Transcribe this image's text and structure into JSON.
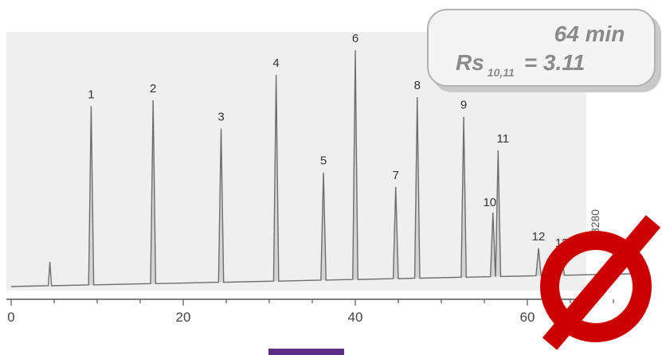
{
  "chart_data": {
    "type": "line",
    "title": "",
    "xlabel": "",
    "ylabel": "",
    "xlim": [
      0,
      72
    ],
    "x_ticks": [
      "0",
      "20",
      "40",
      "60"
    ],
    "x_tick_values": [
      0,
      20,
      40,
      60
    ],
    "grid": false,
    "series": [
      {
        "peaks": [
          {
            "label": "1",
            "rt": 9.3,
            "height": 0.78
          },
          {
            "label": "2",
            "rt": 16.5,
            "height": 0.8
          },
          {
            "label": "3",
            "rt": 24.4,
            "height": 0.67
          },
          {
            "label": "4",
            "rt": 30.8,
            "height": 0.9
          },
          {
            "label": "5",
            "rt": 36.3,
            "height": 0.47
          },
          {
            "label": "6",
            "rt": 40.0,
            "height": 1.0
          },
          {
            "label": "7",
            "rt": 44.7,
            "height": 0.4
          },
          {
            "label": "8",
            "rt": 47.2,
            "height": 0.79
          },
          {
            "label": "9",
            "rt": 52.6,
            "height": 0.7
          },
          {
            "label": "10",
            "rt": 56.0,
            "height": 0.28
          },
          {
            "label": "11",
            "rt": 56.6,
            "height": 0.55
          },
          {
            "label": "12",
            "rt": 61.3,
            "height": 0.12
          },
          {
            "label": "13",
            "rt": 64.0,
            "height": 0.09
          }
        ]
      }
    ]
  },
  "badge": {
    "line1": "64 min",
    "line2_prefix": "Rs",
    "line2_subscript": "10,11",
    "line2_suffix": "= 3.11"
  },
  "side_label": "G8280",
  "no_symbol": "prohibited-sign-icon",
  "colors": {
    "trace": "#6e6e6e",
    "peak_fill": "#d4d4d4",
    "plot_background": "#efefef",
    "badge_background": "#f4f4f4",
    "prohibited_red": "#cc0000",
    "footer_bar": "#5a2d86"
  }
}
